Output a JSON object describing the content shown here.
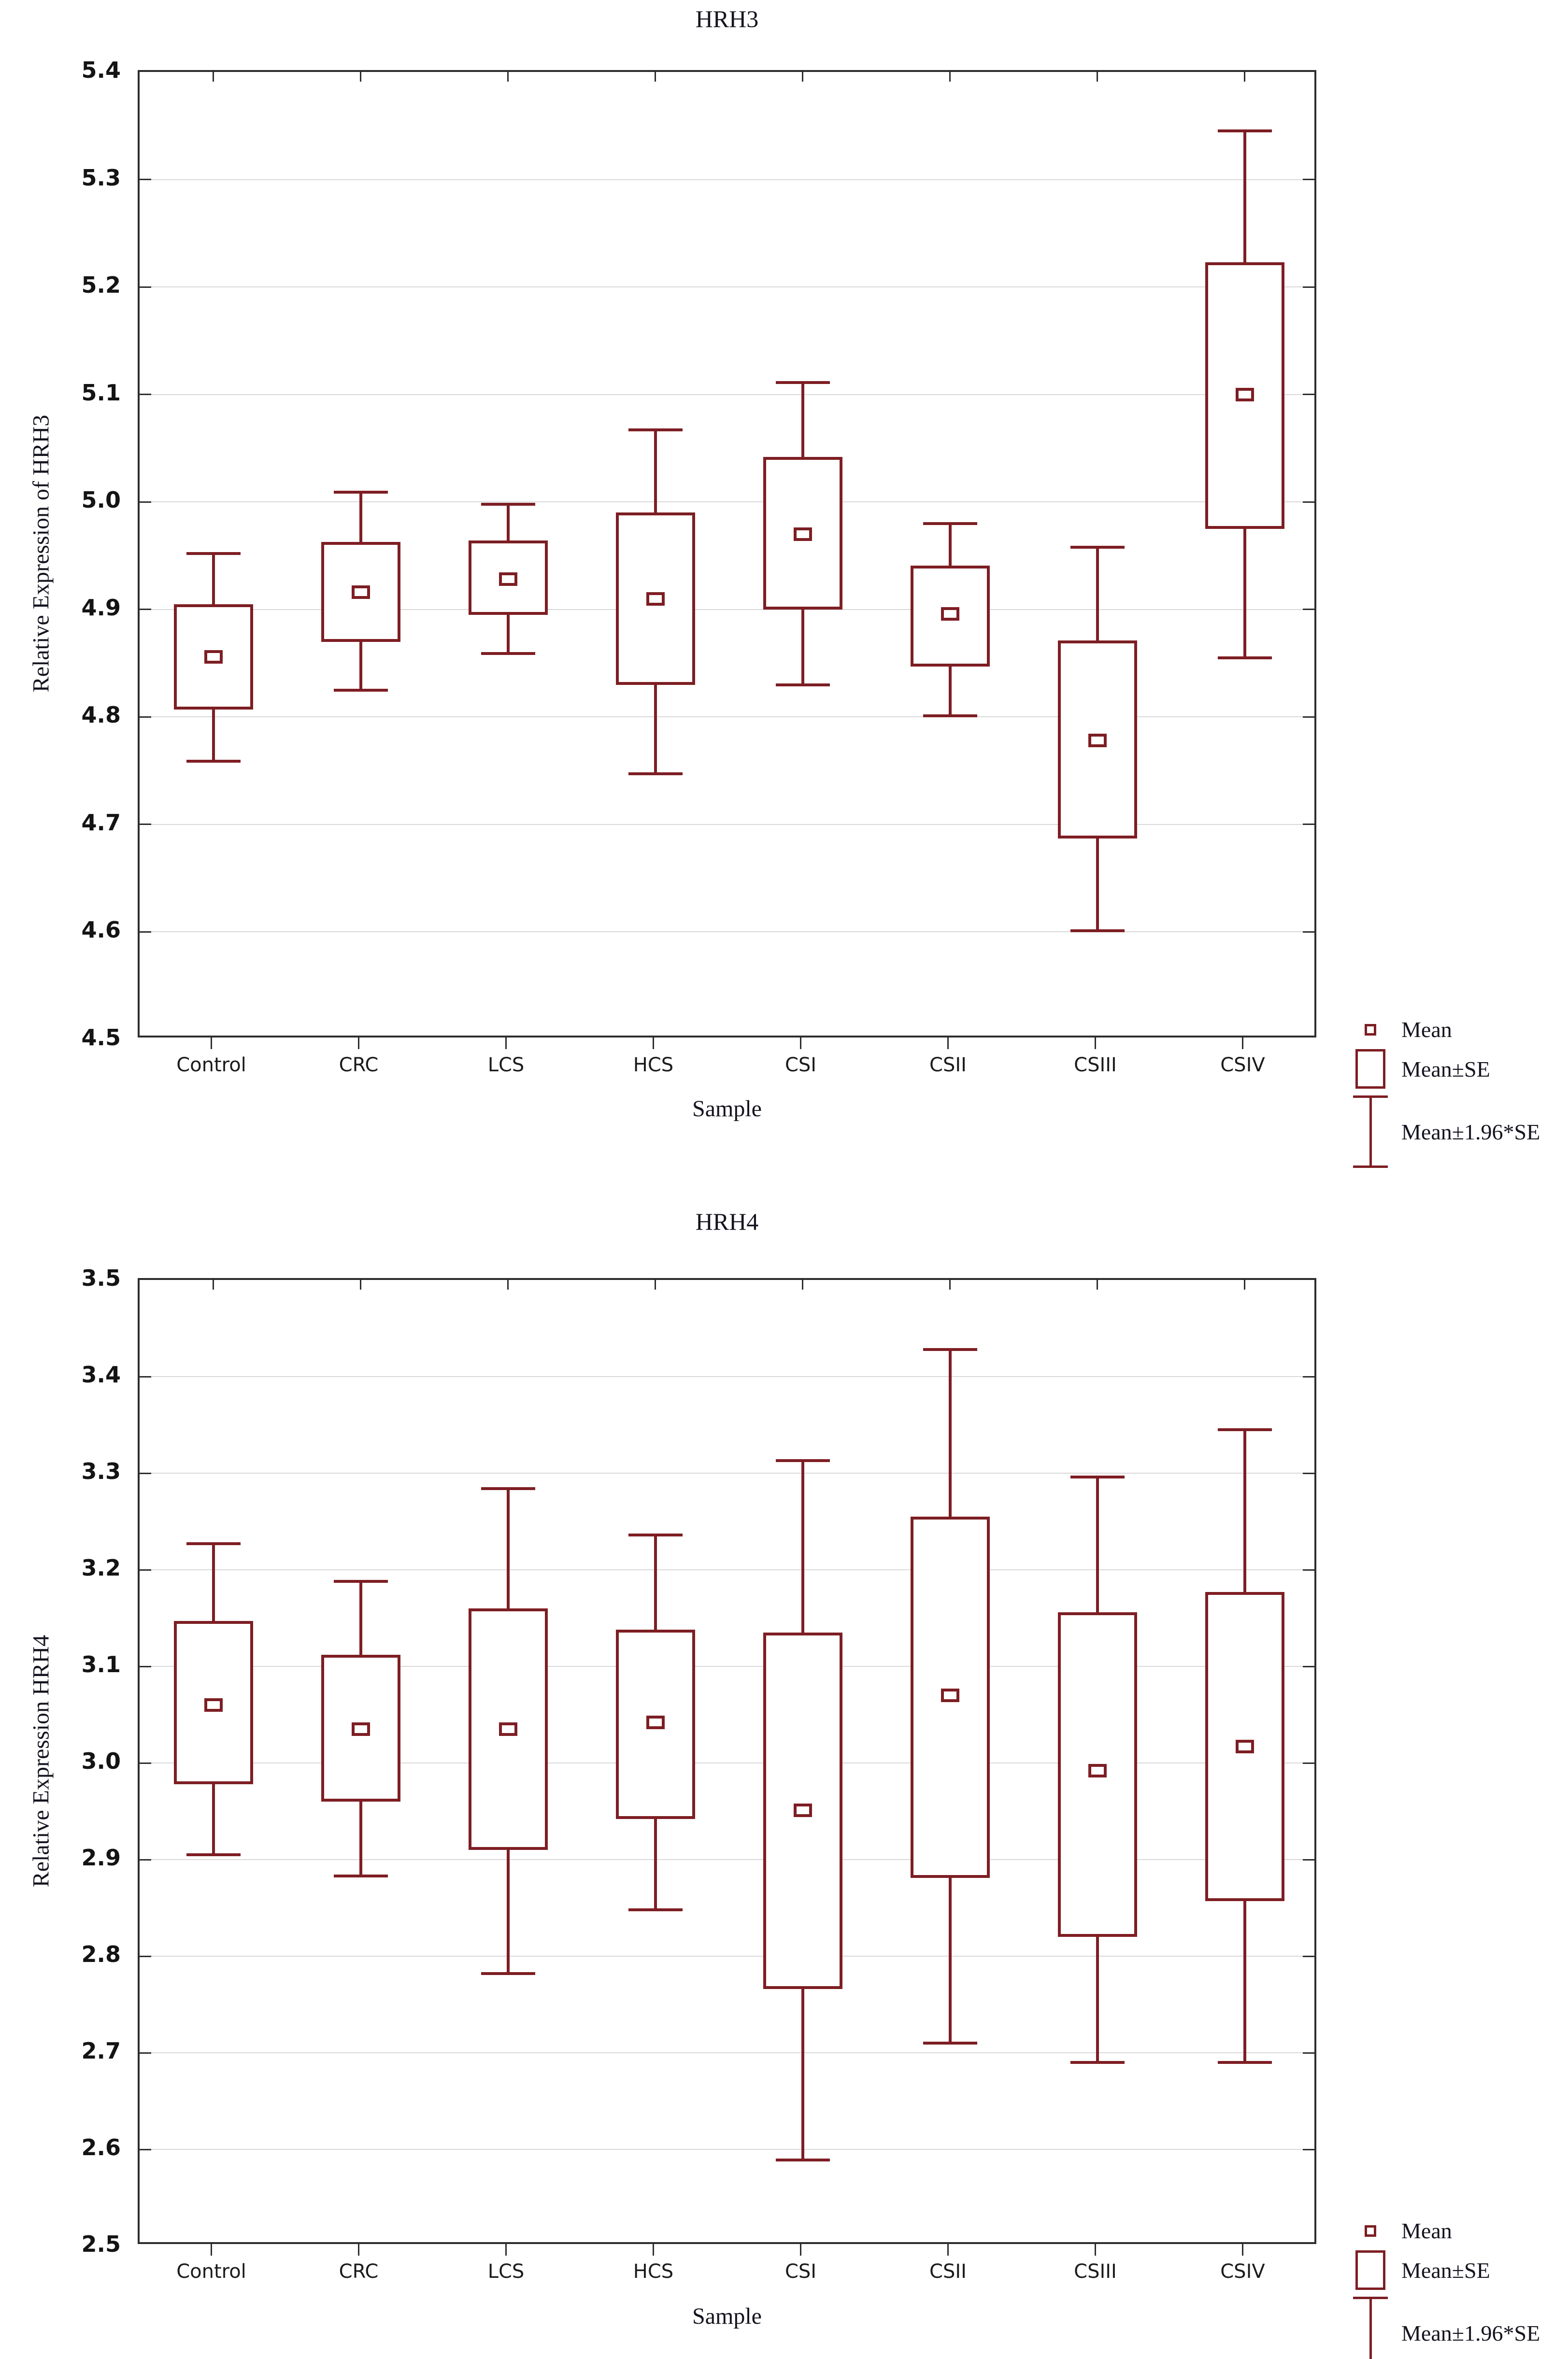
{
  "figure": {
    "background": "#ffffff",
    "accent_color": "#7d1e23",
    "frame_color": "#2d2d2d",
    "gridline_color": "#d9d9d9",
    "text_color": "#14141f"
  },
  "legend": {
    "mean": "Mean",
    "mean_se": "Mean±SE",
    "mean_ci": "Mean±1.96*SE"
  },
  "chart_data": [
    {
      "type": "box",
      "title": "HRH3",
      "xlabel": "Sample",
      "ylabel": "Relative Expression of HRH3",
      "ylim": [
        4.5,
        5.4
      ],
      "grid": true,
      "legend_position": "bottom-right",
      "y_ticks": [
        "5.4",
        "5.3",
        "5.2",
        "5.1",
        "5.0",
        "4.9",
        "4.8",
        "4.7",
        "4.6",
        "4.5"
      ],
      "categories": [
        "Control",
        "CRC",
        "LCS",
        "HCS",
        "CSI",
        "CSII",
        "CSIII",
        "CSIV"
      ],
      "series": [
        {
          "name": "Mean",
          "values": [
            4.856,
            4.916,
            4.928,
            4.91,
            4.97,
            4.896,
            4.778,
            5.1
          ]
        },
        {
          "name": "Mean-SE",
          "values": [
            4.807,
            4.87,
            4.895,
            4.83,
            4.9,
            4.847,
            4.687,
            4.975
          ]
        },
        {
          "name": "Mean+SE",
          "values": [
            4.905,
            4.963,
            4.964,
            4.99,
            5.042,
            4.941,
            4.871,
            5.223
          ]
        },
        {
          "name": "Mean-1.96*SE",
          "values": [
            4.759,
            4.825,
            4.859,
            4.747,
            4.83,
            4.801,
            4.601,
            4.855
          ]
        },
        {
          "name": "Mean+1.96*SE",
          "values": [
            4.952,
            5.009,
            4.998,
            5.067,
            5.111,
            4.98,
            4.958,
            5.345
          ]
        }
      ]
    },
    {
      "type": "box",
      "title": "HRH4",
      "xlabel": "Sample",
      "ylabel": "Relative Expression HRH4",
      "ylim": [
        2.5,
        3.5
      ],
      "grid": true,
      "legend_position": "bottom-right",
      "y_ticks": [
        "3.5",
        "3.4",
        "3.3",
        "3.2",
        "3.1",
        "3.0",
        "2.9",
        "2.8",
        "2.7",
        "2.6",
        "2.5"
      ],
      "categories": [
        "Control",
        "CRC",
        "LCS",
        "HCS",
        "CSI",
        "CSII",
        "CSIII",
        "CSIV"
      ],
      "series": [
        {
          "name": "Mean",
          "values": [
            3.06,
            3.035,
            3.035,
            3.042,
            2.951,
            3.07,
            2.992,
            3.017
          ]
        },
        {
          "name": "Mean-SE",
          "values": [
            2.978,
            2.96,
            2.91,
            2.942,
            2.766,
            2.881,
            2.82,
            2.857
          ]
        },
        {
          "name": "Mean+SE",
          "values": [
            3.147,
            3.112,
            3.16,
            3.138,
            3.135,
            3.255,
            3.156,
            3.177
          ]
        },
        {
          "name": "Mean-1.96*SE",
          "values": [
            2.905,
            2.883,
            2.782,
            2.848,
            2.589,
            2.71,
            2.69,
            2.69
          ]
        },
        {
          "name": "Mean+1.96*SE",
          "values": [
            3.227,
            3.188,
            3.284,
            3.236,
            3.313,
            3.428,
            3.296,
            3.345
          ]
        }
      ]
    }
  ]
}
